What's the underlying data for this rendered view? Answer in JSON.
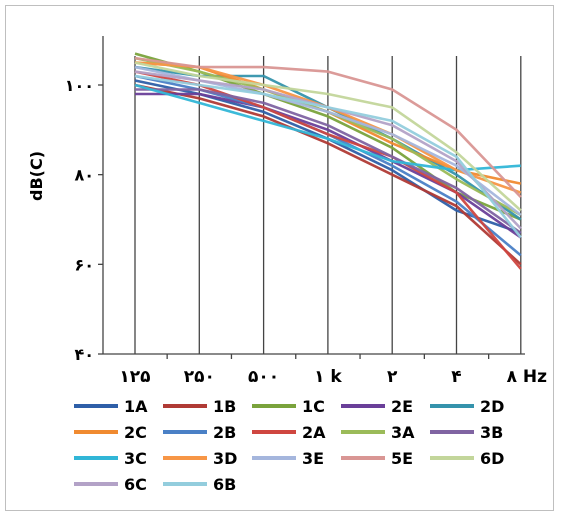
{
  "chart_data": {
    "type": "line",
    "title": "",
    "xlabel": "",
    "ylabel": "dB(C)",
    "categories": [
      "۱۲۵",
      "۲۵۰",
      "۵۰۰",
      "۱ k",
      "۲",
      "۴",
      "۸ Hz"
    ],
    "y_ticks": [
      "۴۰",
      "۶۰",
      "۸۰",
      "۱۰۰"
    ],
    "ylim": [
      40,
      110
    ],
    "grid": "vertical lines at categories",
    "legend_position": "bottom",
    "series": [
      {
        "name": "1A",
        "color": "#2e5fa8",
        "values": [
          101,
          98,
          94,
          88,
          81,
          72,
          67
        ]
      },
      {
        "name": "1B",
        "color": "#b03a35",
        "values": [
          100,
          97,
          93,
          87,
          80,
          73,
          60
        ]
      },
      {
        "name": "1C",
        "color": "#7aa33c",
        "values": [
          107,
          103,
          98,
          93,
          86,
          76,
          70
        ]
      },
      {
        "name": "2E",
        "color": "#6a3f99",
        "values": [
          98,
          98,
          95,
          90,
          83,
          76,
          66
        ]
      },
      {
        "name": "2D",
        "color": "#3593ac",
        "values": [
          104,
          102,
          102,
          95,
          88,
          80,
          70
        ]
      },
      {
        "name": "2C",
        "color": "#f08a30",
        "values": [
          105,
          104,
          99,
          94,
          87,
          81,
          78
        ]
      },
      {
        "name": "2B",
        "color": "#4a80c6",
        "values": [
          102,
          99,
          95,
          89,
          82,
          74,
          62
        ]
      },
      {
        "name": "2A",
        "color": "#cf4640",
        "values": [
          103,
          100,
          95,
          89,
          84,
          76,
          59
        ]
      },
      {
        "name": "3A",
        "color": "#9bbb59",
        "values": [
          106,
          103,
          99,
          94,
          88,
          79,
          71
        ]
      },
      {
        "name": "3B",
        "color": "#8064a2",
        "values": [
          99,
          99,
          96,
          91,
          84,
          77,
          67
        ]
      },
      {
        "name": "3C",
        "color": "#31b6d7",
        "values": [
          100,
          96,
          92,
          88,
          83,
          81,
          82
        ]
      },
      {
        "name": "3D",
        "color": "#f79646",
        "values": [
          105,
          104,
          100,
          95,
          89,
          81,
          76
        ]
      },
      {
        "name": "3E",
        "color": "#a5b6dd",
        "values": [
          104,
          101,
          98,
          94,
          89,
          82,
          71
        ]
      },
      {
        "name": "5E",
        "color": "#d99694",
        "values": [
          106,
          104,
          104,
          103,
          99,
          90,
          75
        ]
      },
      {
        "name": "6D",
        "color": "#c3d69b",
        "values": [
          105,
          102,
          100,
          98,
          95,
          85,
          72
        ]
      },
      {
        "name": "6C",
        "color": "#b3a2c7",
        "values": [
          103,
          101,
          99,
          95,
          91,
          83,
          68
        ]
      },
      {
        "name": "6B",
        "color": "#93cddd",
        "values": [
          102,
          100,
          98,
          95,
          92,
          84,
          66
        ]
      }
    ]
  }
}
